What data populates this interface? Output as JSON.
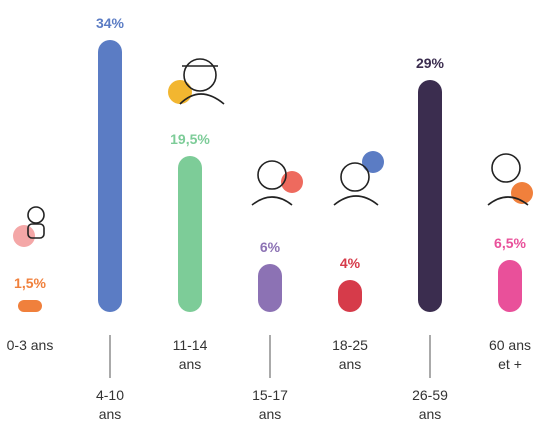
{
  "chart_data": {
    "type": "bar",
    "categories": [
      "0-3 ans",
      "4-10 ans",
      "11-14 ans",
      "15-17 ans",
      "18-25 ans",
      "26-59 ans",
      "60 ans et +"
    ],
    "values": [
      1.5,
      34,
      19.5,
      6,
      4,
      29,
      6.5
    ],
    "value_labels": [
      "1,5%",
      "34%",
      "19,5%",
      "6%",
      "4%",
      "29%",
      "6,5%"
    ],
    "colors": [
      "#f0803c",
      "#5b7cc4",
      "#7dcc98",
      "#8c72b4",
      "#d63b4a",
      "#3b2d4f",
      "#e9509a"
    ]
  }
}
